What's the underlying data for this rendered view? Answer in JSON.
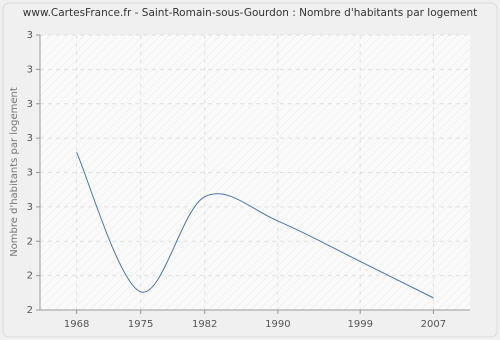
{
  "chart_data": {
    "type": "line",
    "title": "www.CartesFrance.fr - Saint-Romain-sous-Gourdon : Nombre d'habitants par logement",
    "y_label": "Nombre d'habitants par logement",
    "x": [
      1968,
      1975,
      1982,
      1990,
      1999,
      2007
    ],
    "values": [
      2.78,
      2.09,
      2.56,
      2.44,
      2.24,
      2.06
    ],
    "color": "#4a76a8",
    "xlim": [
      1964,
      2011
    ],
    "xticks": [
      1968,
      1975,
      1982,
      1990,
      1999,
      2007
    ],
    "ylim": [
      2,
      3.36
    ],
    "yticks": [
      {
        "value": 2,
        "label": "2"
      },
      {
        "value": 2.17,
        "label": "2"
      },
      {
        "value": 2.34,
        "label": "2"
      },
      {
        "value": 2.51,
        "label": "3"
      },
      {
        "value": 2.68,
        "label": "3"
      },
      {
        "value": 2.85,
        "label": "3"
      },
      {
        "value": 3.02,
        "label": "3"
      },
      {
        "value": 3.19,
        "label": "3"
      },
      {
        "value": 3.36,
        "label": "3"
      }
    ],
    "grid": true
  }
}
